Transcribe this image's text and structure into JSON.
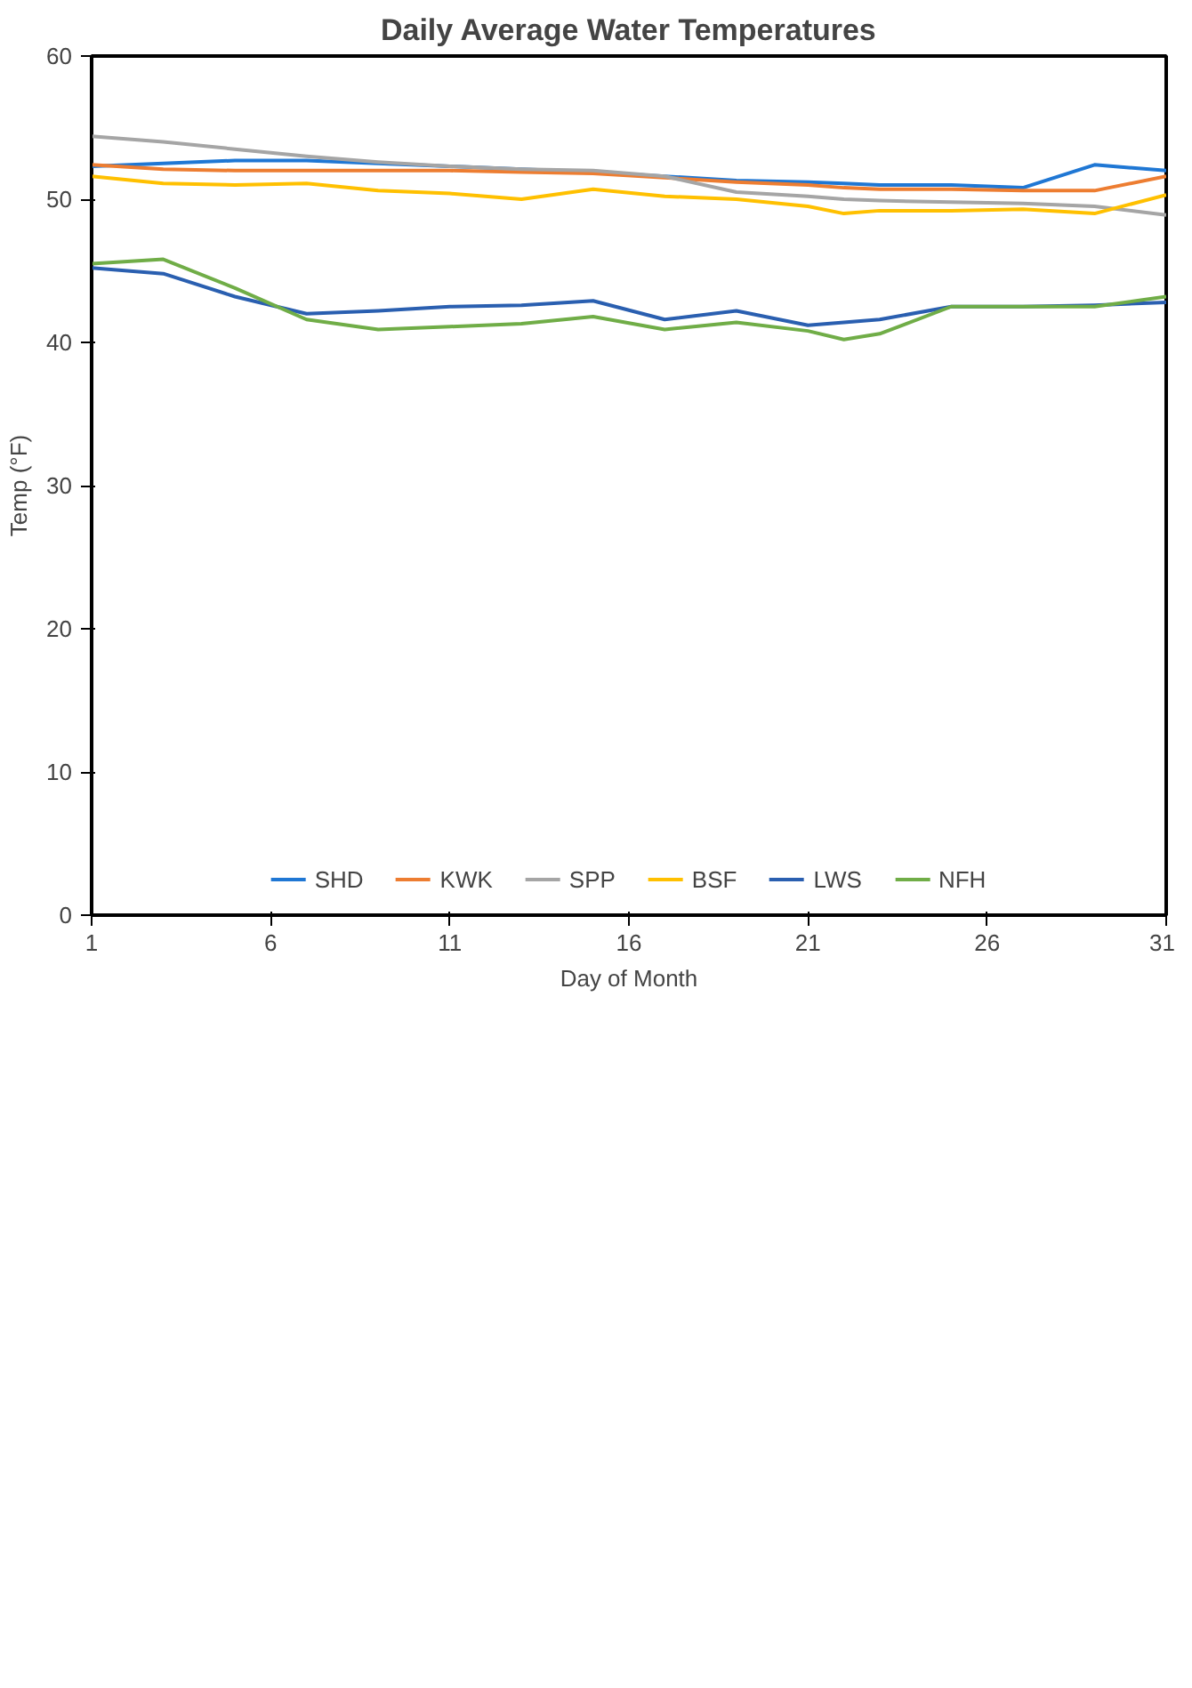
{
  "chart_data": {
    "type": "line",
    "title": "Daily Average Water Temperatures",
    "xlabel": "Day of Month",
    "ylabel": "Temp (°F)",
    "x": [
      1,
      3,
      5,
      7,
      9,
      11,
      13,
      15,
      17,
      19,
      21,
      22,
      23,
      25,
      27,
      29,
      31
    ],
    "series": [
      {
        "name": "SHD",
        "color": "#1f77d4",
        "values": [
          52.3,
          52.5,
          52.7,
          52.7,
          52.5,
          52.3,
          52.1,
          51.9,
          51.6,
          51.3,
          51.2,
          51.1,
          51.0,
          51.0,
          50.8,
          52.4,
          52.0
        ]
      },
      {
        "name": "KWK",
        "color": "#ed7d31",
        "values": [
          52.4,
          52.1,
          52.0,
          52.0,
          52.0,
          52.0,
          51.9,
          51.8,
          51.5,
          51.2,
          51.0,
          50.8,
          50.7,
          50.7,
          50.6,
          50.6,
          51.6
        ]
      },
      {
        "name": "SPP",
        "color": "#a5a5a5",
        "values": [
          54.4,
          54.0,
          53.5,
          53.0,
          52.6,
          52.3,
          52.1,
          52.0,
          51.6,
          50.5,
          50.2,
          50.0,
          49.9,
          49.8,
          49.7,
          49.5,
          48.9
        ]
      },
      {
        "name": "BSF",
        "color": "#ffc000",
        "values": [
          51.6,
          51.1,
          51.0,
          51.1,
          50.6,
          50.4,
          50.0,
          50.7,
          50.2,
          50.0,
          49.5,
          49.0,
          49.2,
          49.2,
          49.3,
          49.0,
          50.3
        ]
      },
      {
        "name": "LWS",
        "color": "#2a5fb0",
        "values": [
          45.2,
          44.8,
          43.2,
          42.0,
          42.2,
          42.5,
          42.6,
          42.9,
          41.6,
          42.2,
          41.2,
          41.4,
          41.6,
          42.5,
          42.5,
          42.6,
          42.8
        ]
      },
      {
        "name": "NFH",
        "color": "#70ad47",
        "values": [
          45.5,
          45.8,
          43.8,
          41.6,
          40.9,
          41.1,
          41.3,
          41.8,
          40.9,
          41.4,
          40.8,
          40.2,
          40.6,
          42.5,
          42.5,
          42.5,
          43.2
        ]
      }
    ],
    "xlim": [
      1,
      31
    ],
    "xticks": [
      1,
      6,
      11,
      16,
      21,
      26,
      31
    ],
    "ylim": [
      0,
      60
    ],
    "yticks": [
      0,
      10,
      20,
      30,
      40,
      50,
      60
    ],
    "grid": false,
    "legend": "bottom",
    "marker": "none",
    "line_style": "solid"
  }
}
